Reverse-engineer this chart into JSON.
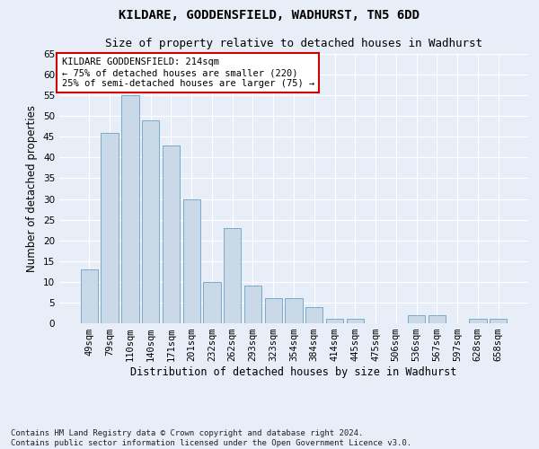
{
  "title": "KILDARE, GODDENSFIELD, WADHURST, TN5 6DD",
  "subtitle": "Size of property relative to detached houses in Wadhurst",
  "xlabel": "Distribution of detached houses by size in Wadhurst",
  "ylabel": "Number of detached properties",
  "categories": [
    "49sqm",
    "79sqm",
    "110sqm",
    "140sqm",
    "171sqm",
    "201sqm",
    "232sqm",
    "262sqm",
    "293sqm",
    "323sqm",
    "354sqm",
    "384sqm",
    "414sqm",
    "445sqm",
    "475sqm",
    "506sqm",
    "536sqm",
    "567sqm",
    "597sqm",
    "628sqm",
    "658sqm"
  ],
  "values": [
    13,
    46,
    55,
    49,
    43,
    30,
    10,
    23,
    9,
    6,
    6,
    4,
    1,
    1,
    0,
    0,
    2,
    2,
    0,
    1,
    1
  ],
  "bar_color": "#c9d9e8",
  "bar_edge_color": "#7aaac8",
  "ylim": [
    0,
    65
  ],
  "yticks": [
    0,
    5,
    10,
    15,
    20,
    25,
    30,
    35,
    40,
    45,
    50,
    55,
    60,
    65
  ],
  "annotation_text": "KILDARE GODDENSFIELD: 214sqm\n← 75% of detached houses are smaller (220)\n25% of semi-detached houses are larger (75) →",
  "annotation_box_color": "#ffffff",
  "annotation_box_edge_color": "#cc0000",
  "footnote": "Contains HM Land Registry data © Crown copyright and database right 2024.\nContains public sector information licensed under the Open Government Licence v3.0.",
  "background_color": "#e8eef8",
  "plot_background_color": "#e8eef8",
  "grid_color": "#ffffff",
  "title_fontsize": 10,
  "subtitle_fontsize": 9,
  "label_fontsize": 8.5,
  "tick_fontsize": 7.5,
  "annotation_fontsize": 7.5,
  "footnote_fontsize": 6.5
}
